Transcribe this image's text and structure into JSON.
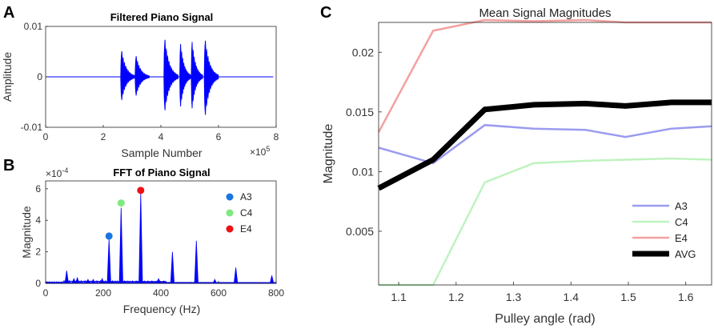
{
  "panel_labels": [
    "A",
    "B",
    "C"
  ],
  "chart_data": [
    {
      "id": "A",
      "type": "line",
      "title": "Filtered Piano Signal",
      "xlabel": "Sample Number",
      "ylabel": "Amplitude",
      "x_exponent": "×10^5",
      "xlim": [
        0,
        8
      ],
      "ylim": [
        -0.01,
        0.01
      ],
      "xticks": [
        0,
        2,
        4,
        6,
        8
      ],
      "yticks": [
        -0.01,
        0,
        0.01
      ],
      "ytick_labels": [
        "-0.01",
        "0",
        "0.01"
      ],
      "color": "#0000ff",
      "bursts": [
        {
          "start": 2.6,
          "end": 3.1,
          "peak": 0.0062
        },
        {
          "start": 3.1,
          "end": 3.6,
          "peak": 0.005
        },
        {
          "start": 4.1,
          "end": 4.6,
          "peak": 0.009
        },
        {
          "start": 4.65,
          "end": 5.05,
          "peak": 0.008
        },
        {
          "start": 5.05,
          "end": 5.45,
          "peak": 0.0085
        },
        {
          "start": 5.5,
          "end": 6.0,
          "peak": 0.0088
        }
      ]
    },
    {
      "id": "B",
      "type": "line",
      "title": "FFT of Piano Signal",
      "xlabel": "Frequency (Hz)",
      "ylabel": "Magnitude",
      "y_exponent": "×10^-4",
      "xlim": [
        0,
        800
      ],
      "ylim": [
        0,
        6.5
      ],
      "xticks": [
        0,
        200,
        400,
        600,
        800
      ],
      "yticks": [
        0,
        2,
        4,
        6
      ],
      "color": "#0000ff",
      "spectral_peaks": [
        {
          "f": 73,
          "m": 0.8
        },
        {
          "f": 98,
          "m": 0.3
        },
        {
          "f": 110,
          "m": 0.35
        },
        {
          "f": 147,
          "m": 0.25
        },
        {
          "f": 165,
          "m": 0.25
        },
        {
          "f": 196,
          "m": 0.3
        },
        {
          "f": 220,
          "m": 2.8
        },
        {
          "f": 262,
          "m": 4.8
        },
        {
          "f": 330,
          "m": 5.7
        },
        {
          "f": 392,
          "m": 0.3
        },
        {
          "f": 440,
          "m": 2.0
        },
        {
          "f": 523,
          "m": 2.7
        },
        {
          "f": 587,
          "m": 0.25
        },
        {
          "f": 660,
          "m": 1.0
        },
        {
          "f": 785,
          "m": 0.5
        }
      ],
      "markers": [
        {
          "label": "A3",
          "x": 220,
          "y": 3.0,
          "color": "#1a75e0"
        },
        {
          "label": "C4",
          "x": 262,
          "y": 5.1,
          "color": "#7fe87f"
        },
        {
          "label": "E4",
          "x": 330,
          "y": 5.9,
          "color": "#ee1111"
        }
      ]
    },
    {
      "id": "C",
      "type": "line",
      "title": "Mean Signal Magnitudes",
      "xlabel": "Pulley angle (rad)",
      "ylabel": "Magnitude",
      "xlim": [
        1.065,
        1.645
      ],
      "ylim": [
        0.0005,
        0.0225
      ],
      "xticks": [
        1.1,
        1.2,
        1.3,
        1.4,
        1.5,
        1.6
      ],
      "yticks": [
        0.005,
        0.01,
        0.015,
        0.02
      ],
      "ytick_labels": [
        "0.005",
        "0.01",
        "0.015",
        "0.02"
      ],
      "x": [
        1.065,
        1.16,
        1.25,
        1.335,
        1.425,
        1.495,
        1.575,
        1.645
      ],
      "series": [
        {
          "name": "A3",
          "color": "#9b9bf0",
          "width": 2.5,
          "values": [
            0.012,
            0.0107,
            0.0139,
            0.0136,
            0.0135,
            0.0129,
            0.0136,
            0.0138
          ]
        },
        {
          "name": "C4",
          "color": "#bff3bf",
          "width": 2.5,
          "values": [
            0.0005,
            0.0005,
            0.0091,
            0.0107,
            0.0109,
            0.011,
            0.0111,
            0.011
          ]
        },
        {
          "name": "E4",
          "color": "#f4a0a0",
          "width": 2.5,
          "values": [
            0.0133,
            0.0218,
            0.0227,
            0.0226,
            0.0227,
            0.0225,
            0.0225,
            0.0225
          ]
        },
        {
          "name": "AVG",
          "color": "#000000",
          "width": 7,
          "values": [
            0.0086,
            0.011,
            0.0152,
            0.0156,
            0.0157,
            0.0155,
            0.0158,
            0.0158
          ]
        }
      ]
    }
  ]
}
